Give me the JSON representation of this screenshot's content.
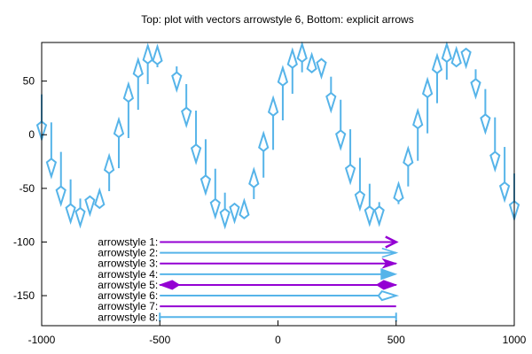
{
  "chart_data": {
    "type": "vector",
    "title": "Top: plot with vectors arrowstyle 6, Bottom: explicit arrows",
    "xlim": [
      -1000,
      1000
    ],
    "ylim": [
      -178,
      86
    ],
    "xticks": [
      -1000,
      -500,
      0,
      500,
      1000
    ],
    "yticks": [
      50,
      0,
      -50,
      -100,
      -150
    ],
    "grid": false,
    "colors": {
      "violet": "#9400d3",
      "blue": "#56b4e9"
    },
    "vectors": {
      "style": "arrowstyle 6",
      "x": [
        -1000,
        -959.2,
        -918.4,
        -877.6,
        -836.7,
        -795.9,
        -755.1,
        -714.3,
        -673.5,
        -632.7,
        -591.8,
        -551.0,
        -510.2,
        -428.6,
        -387.8,
        -346.9,
        -306.1,
        -265.3,
        -224.5,
        -183.7,
        -142.9,
        -102.0,
        -61.2,
        -20.4,
        20.4,
        61.2,
        102.0,
        142.9,
        183.7,
        224.5,
        265.3,
        306.1,
        346.9,
        387.8,
        428.6,
        510.2,
        551.0,
        591.8,
        632.7,
        673.5,
        714.3,
        755.1,
        795.9,
        836.7,
        877.6,
        918.4,
        959.2,
        1000
      ],
      "y": [
        37.6,
        11.5,
        -16.0,
        -41.6,
        -59.5,
        -72.0,
        -66.4,
        -52.6,
        -31.2,
        -3.1,
        23.3,
        47.2,
        62.9,
        63.7,
        47.2,
        22.5,
        -4.2,
        -31.7,
        -54.0,
        -65.5,
        -68.3,
        -60.0,
        -40.0,
        -14.1,
        13.4,
        38.2,
        58.2,
        67.3,
        67.3,
        54.1,
        32.6,
        5.1,
        -21.5,
        -45.7,
        -62.8,
        -64.7,
        -48.2,
        -24.3,
        1.3,
        29.4,
        51.4,
        65.6,
        69.2,
        61.0,
        42.6,
        16.2,
        -11.4,
        -36.1
      ],
      "dy": [
        -41.8,
        -50.4,
        -48.7,
        -39.6,
        -25.3,
        -2.0,
        14.6,
        33.0,
        45.4,
        50.3,
        46.7,
        35.8,
        19.3,
        -22.0,
        -38.5,
        -48.2,
        -50.3,
        -44.8,
        -31.6,
        -15.2,
        6.9,
        27.5,
        41.3,
        48.4,
        49.0,
        40.7,
        26.2,
        7.4,
        -13.2,
        -31.6,
        -45.1,
        -49.5,
        -47.6,
        -37.7,
        -20.6,
        19.0,
        35.5,
        46.8,
        50.1,
        44.5,
        33.0,
        14.6,
        -5.5,
        -25.6,
        -40.2,
        -48.7,
        -49.5,
        -42.4
      ]
    },
    "arrows": [
      {
        "label": "arrowstyle 1:",
        "from": [
          -500,
          -100
        ],
        "to": [
          500,
          -100
        ],
        "color": "#9400d3",
        "head": "open"
      },
      {
        "label": "arrowstyle 2:",
        "from": [
          -500,
          -110
        ],
        "to": [
          500,
          -110
        ],
        "color": "#56b4e9",
        "head": "open-thin"
      },
      {
        "label": "arrowstyle 3:",
        "from": [
          -500,
          -120
        ],
        "to": [
          500,
          -120
        ],
        "color": "#9400d3",
        "head": "filled-notched"
      },
      {
        "label": "arrowstyle 4:",
        "from": [
          -500,
          -130
        ],
        "to": [
          500,
          -130
        ],
        "color": "#56b4e9",
        "head": "filled"
      },
      {
        "label": "arrowstyle 5:",
        "from": [
          -500,
          -140
        ],
        "to": [
          500,
          -140
        ],
        "color": "#9400d3",
        "head": "filled-diamond-both"
      },
      {
        "label": "arrowstyle 6:",
        "from": [
          -500,
          -150
        ],
        "to": [
          500,
          -150
        ],
        "color": "#56b4e9",
        "head": "empty-diamond"
      },
      {
        "label": "arrowstyle 7:",
        "from": [
          -500,
          -160
        ],
        "to": [
          500,
          -160
        ],
        "color": "#9400d3",
        "head": "none"
      },
      {
        "label": "arrowstyle 8:",
        "from": [
          -500,
          -170
        ],
        "to": [
          500,
          -170
        ],
        "color": "#56b4e9",
        "head": "bars"
      }
    ]
  }
}
